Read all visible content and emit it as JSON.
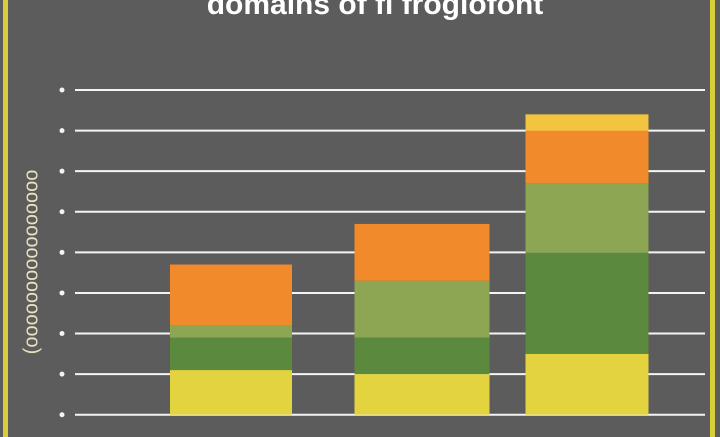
{
  "chart_data": {
    "type": "stacked_bar",
    "title": "domains of fi frogiofont",
    "ylabel": "(oooooooooooooooo",
    "categories": [
      null,
      null,
      null
    ],
    "series": [
      {
        "color": "#e3d33f",
        "values": [
          1.1,
          1.0,
          1.5
        ]
      },
      {
        "color": "#5b8a3f",
        "values": [
          0.8,
          0.9,
          2.5
        ]
      },
      {
        "color": "#8da653",
        "values": [
          0.3,
          1.4,
          1.7
        ]
      },
      {
        "color": "#f08a2a",
        "values": [
          1.5,
          1.4,
          1.3
        ]
      },
      {
        "color": "#f2c440",
        "values": [
          0,
          0,
          0.4
        ]
      }
    ],
    "ylim": [
      -0.5,
      8
    ],
    "yticks": [
      0,
      1,
      2,
      3,
      4,
      5,
      6,
      7,
      8
    ],
    "grid": true
  }
}
